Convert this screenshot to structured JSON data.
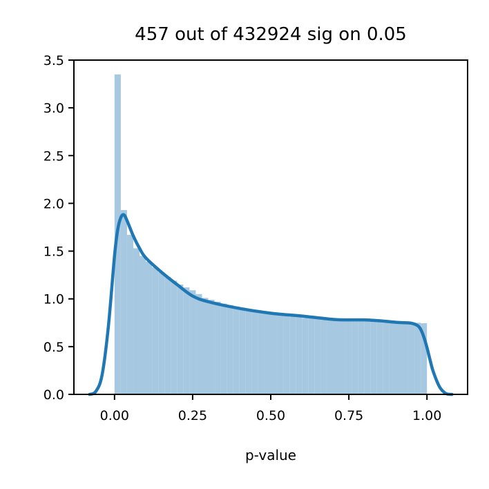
{
  "chart_data": {
    "type": "bar",
    "title": "457 out of 432924 sig on 0.05",
    "xlabel": "p-value",
    "ylabel": "",
    "xlim": [
      -0.13,
      1.13
    ],
    "ylim": [
      0,
      3.5
    ],
    "x_ticks": [
      "0.00",
      "0.25",
      "0.50",
      "0.75",
      "1.00"
    ],
    "y_ticks": [
      "0.0",
      "0.5",
      "1.0",
      "1.5",
      "2.0",
      "2.5",
      "3.0",
      "3.5"
    ],
    "grid": false,
    "colors": {
      "histogram": "#a6c8e0",
      "kde": "#1f77b4"
    },
    "histogram": {
      "bin_edges": [
        0.0,
        0.02,
        0.04,
        0.06,
        0.08,
        0.1,
        0.12,
        0.14,
        0.16,
        0.18,
        0.2,
        0.22,
        0.24,
        0.26,
        0.28,
        0.3,
        0.32,
        0.34,
        0.36,
        0.38,
        0.4,
        0.42,
        0.44,
        0.46,
        0.48,
        0.5,
        0.52,
        0.54,
        0.56,
        0.58,
        0.6,
        0.62,
        0.64,
        0.66,
        0.68,
        0.7,
        0.72,
        0.74,
        0.76,
        0.78,
        0.8,
        0.82,
        0.84,
        0.86,
        0.88,
        0.9,
        0.92,
        0.94,
        0.96,
        0.98,
        1.0
      ],
      "values": [
        3.35,
        1.93,
        1.67,
        1.53,
        1.45,
        1.39,
        1.33,
        1.28,
        1.23,
        1.19,
        1.15,
        1.12,
        1.09,
        1.05,
        1.01,
        0.99,
        0.97,
        0.95,
        0.935,
        0.92,
        0.905,
        0.89,
        0.875,
        0.86,
        0.85,
        0.84,
        0.83,
        0.82,
        0.815,
        0.81,
        0.8,
        0.795,
        0.79,
        0.785,
        0.78,
        0.78,
        0.775,
        0.775,
        0.775,
        0.775,
        0.77,
        0.765,
        0.76,
        0.76,
        0.755,
        0.755,
        0.75,
        0.75,
        0.75,
        0.745
      ]
    },
    "kde": {
      "x": [
        -0.08,
        -0.06,
        -0.04,
        -0.02,
        0.0,
        0.01,
        0.02,
        0.03,
        0.04,
        0.06,
        0.08,
        0.1,
        0.15,
        0.2,
        0.25,
        0.3,
        0.4,
        0.5,
        0.6,
        0.7,
        0.75,
        0.8,
        0.85,
        0.9,
        0.93,
        0.95,
        0.97,
        0.98,
        0.99,
        1.0,
        1.01,
        1.02,
        1.04,
        1.06,
        1.08
      ],
      "y": [
        0.0,
        0.03,
        0.2,
        0.7,
        1.45,
        1.72,
        1.85,
        1.88,
        1.82,
        1.66,
        1.53,
        1.43,
        1.28,
        1.15,
        1.03,
        0.97,
        0.9,
        0.85,
        0.82,
        0.785,
        0.78,
        0.78,
        0.77,
        0.755,
        0.75,
        0.745,
        0.72,
        0.68,
        0.6,
        0.49,
        0.36,
        0.24,
        0.08,
        0.01,
        0.0
      ]
    }
  }
}
